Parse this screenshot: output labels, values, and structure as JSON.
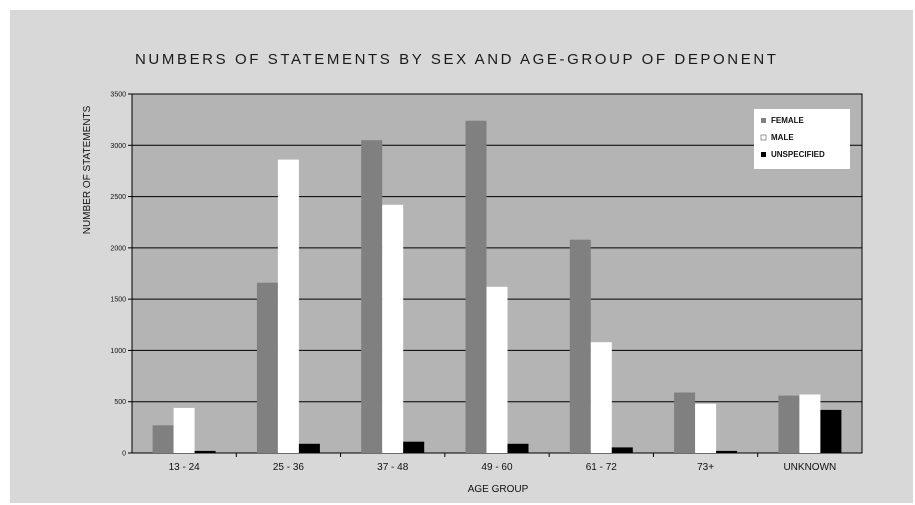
{
  "chart_data": {
    "type": "bar",
    "title": "NUMBERS OF STATEMENTS  BY SEX AND AGE-GROUP OF DEPONENT",
    "xlabel": "AGE GROUP",
    "ylabel": "NUMBER OF STATEMENTS",
    "categories": [
      "13 - 24",
      "25 - 36",
      "37 - 48",
      "49 - 60",
      "61 - 72",
      "73+",
      "UNKNOWN"
    ],
    "series": [
      {
        "name": "FEMALE",
        "color": "#808080",
        "values": [
          270,
          1660,
          3050,
          3240,
          2080,
          590,
          560
        ]
      },
      {
        "name": "MALE",
        "color": "#ffffff",
        "values": [
          440,
          2860,
          2420,
          1620,
          1080,
          480,
          570
        ]
      },
      {
        "name": "UNSPECIFIED",
        "color": "#000000",
        "values": [
          20,
          90,
          110,
          90,
          55,
          20,
          420
        ]
      }
    ],
    "yticks": [
      "0",
      "500",
      "1000",
      "1500",
      "2000",
      "2500",
      "3000",
      "3500"
    ],
    "ylim": [
      0,
      3500
    ],
    "grid": true,
    "legend_position": "top-right",
    "plot_background": "#b4b4b4"
  }
}
